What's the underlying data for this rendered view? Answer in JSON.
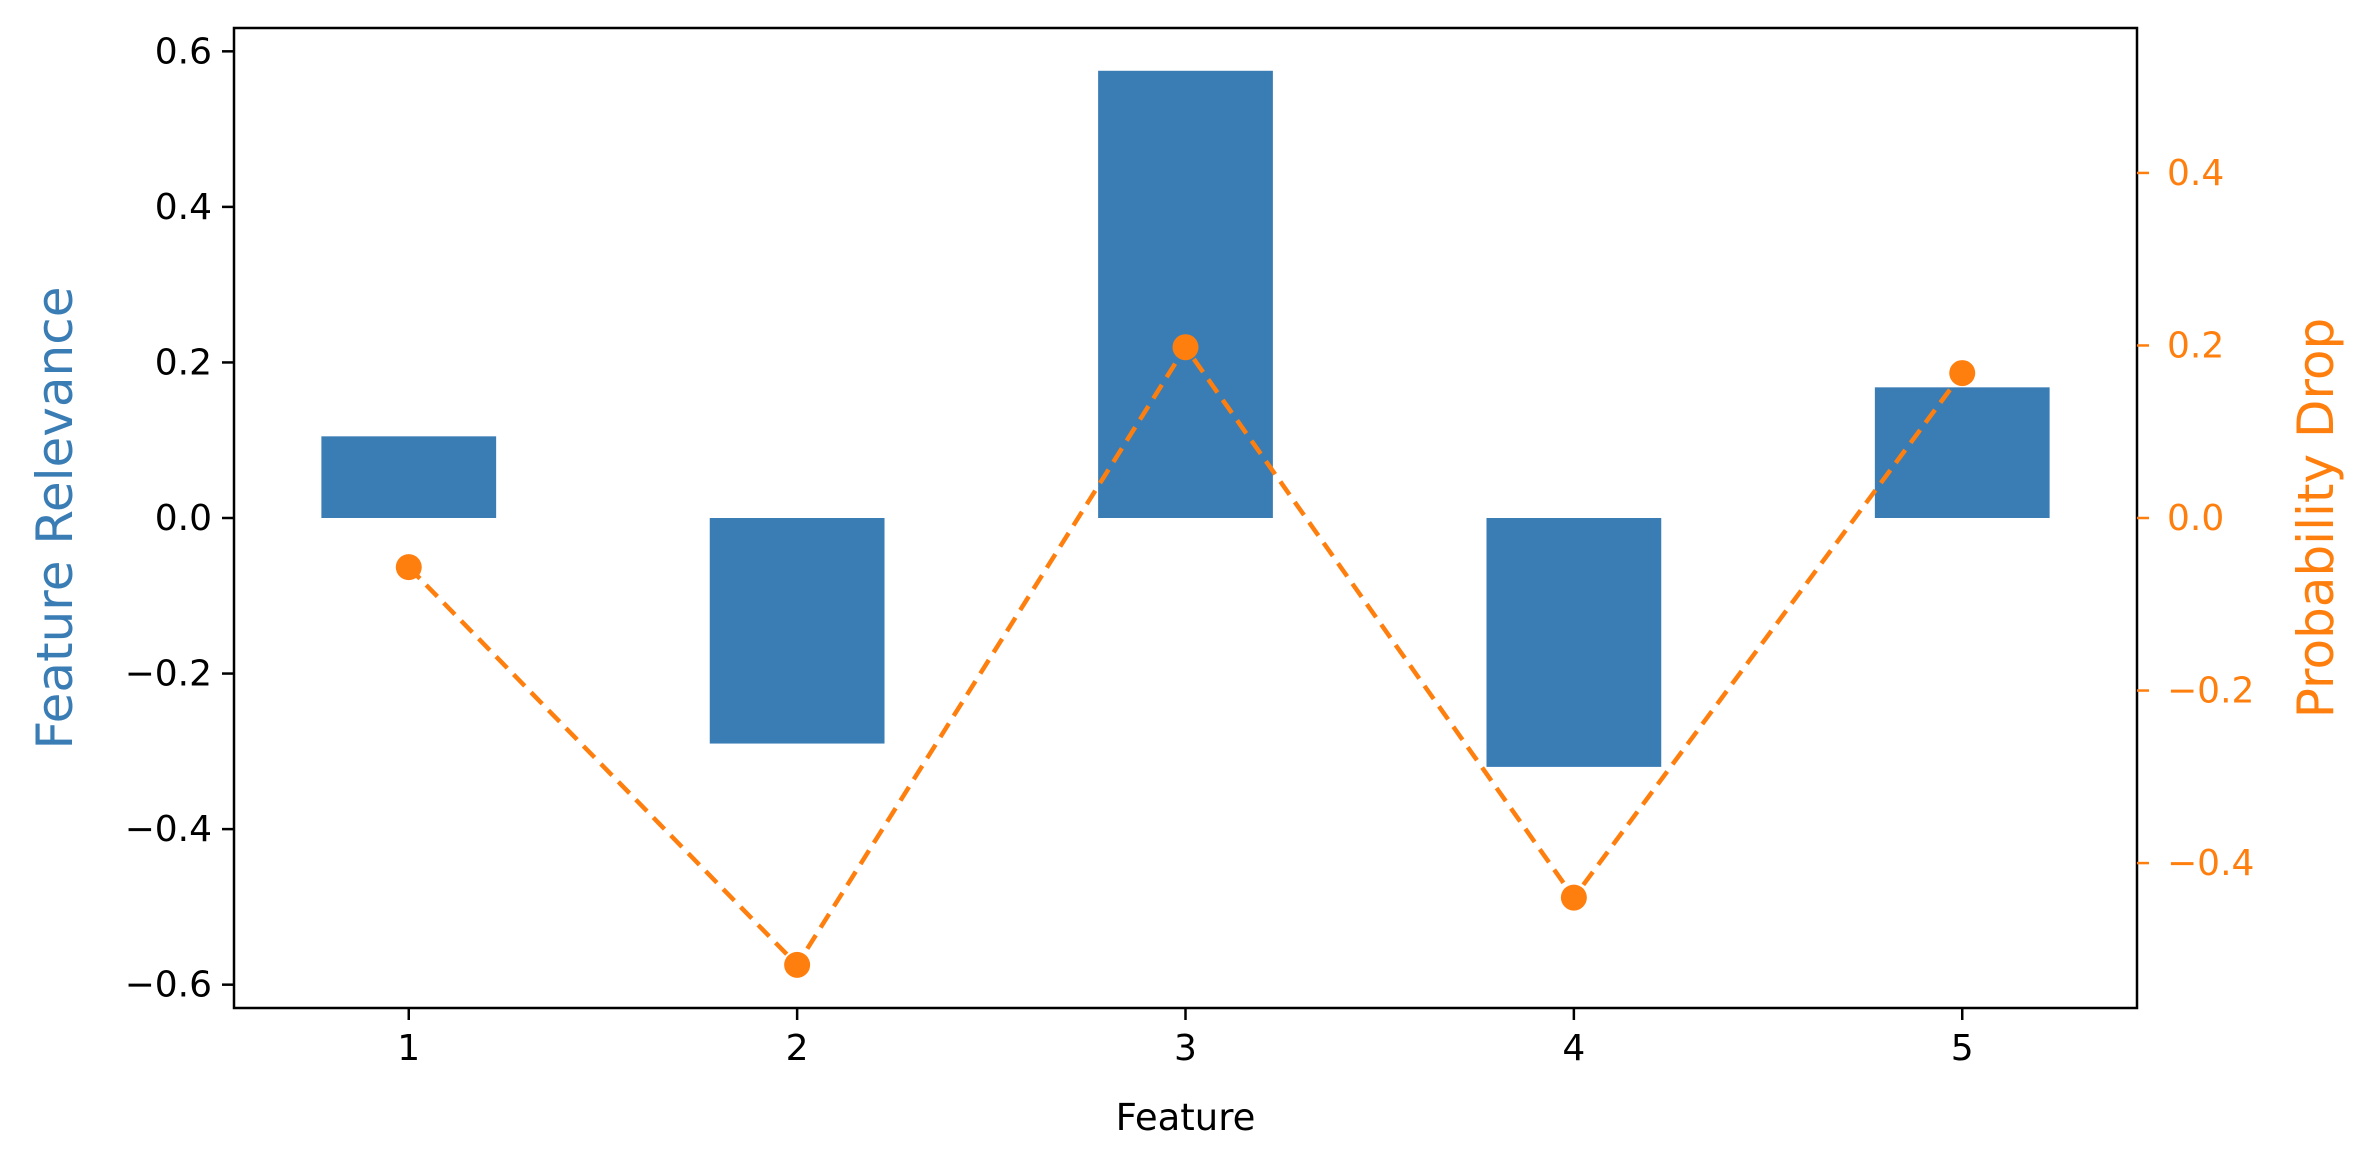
{
  "chart_data": {
    "type": "bar",
    "xlabel": "Feature",
    "ylabel_left": "Feature Relevance",
    "ylabel_right": "Probability Drop",
    "categories": [
      "1",
      "2",
      "3",
      "4",
      "5"
    ],
    "series": [
      {
        "kind": "bar",
        "axis": "left",
        "values": [
          0.105,
          -0.29,
          0.575,
          -0.32,
          0.168
        ]
      },
      {
        "kind": "line",
        "axis": "right",
        "style": "dashed",
        "values": [
          -0.057,
          -0.518,
          0.198,
          -0.44,
          0.168
        ]
      }
    ],
    "ylim_left": [
      -0.63,
      0.63
    ],
    "ylim_right": [
      -0.568,
      0.568
    ],
    "yticks_left": [
      "0.6",
      "0.4",
      "0.2",
      "0.0",
      "−0.2",
      "−0.4",
      "−0.6"
    ],
    "yticks_right": [
      "0.4",
      "0.2",
      "0.0",
      "−0.2",
      "−0.4"
    ],
    "grid": false,
    "colors": {
      "bar": "#3a7db5",
      "line": "#ff7f0e",
      "axis": "#000000"
    }
  }
}
